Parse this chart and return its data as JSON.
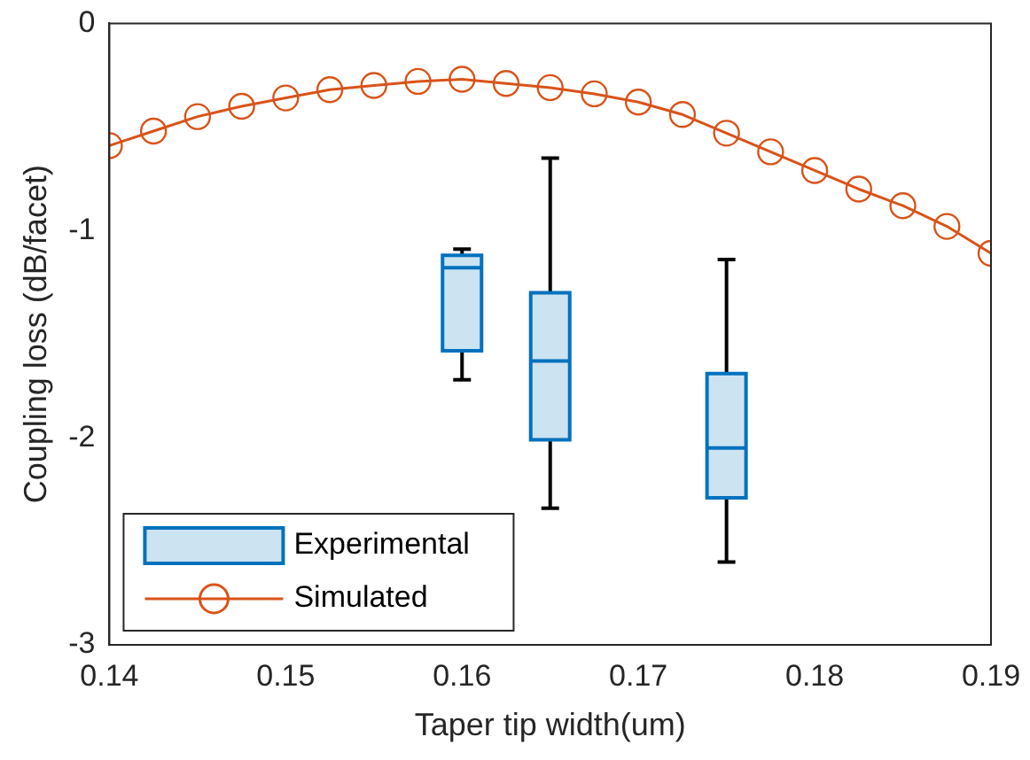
{
  "chart_data": {
    "type": "line",
    "xlabel": "Taper tip width(um)",
    "ylabel": "Coupling loss (dB/facet)",
    "xlim": [
      0.14,
      0.19
    ],
    "xticks": [
      0.14,
      0.15,
      0.16,
      0.17,
      0.18,
      0.19
    ],
    "ylim": [
      -3,
      0
    ],
    "yticks": [
      0,
      -1,
      -2,
      -3
    ],
    "grid": false,
    "legend": "bottom left",
    "series": [
      {
        "name": "Experimental",
        "type": "box",
        "color": "#0072bd",
        "x": [
          0.16,
          0.165,
          0.175
        ],
        "boxes": [
          {
            "low": -1.72,
            "q1": -1.58,
            "median": -1.18,
            "q3": -1.12,
            "high": -1.09
          },
          {
            "low": -2.34,
            "q1": -2.01,
            "median": -1.63,
            "q3": -1.3,
            "high": -0.65
          },
          {
            "low": -2.6,
            "q1": -2.29,
            "median": -2.05,
            "q3": -1.69,
            "high": -1.14
          }
        ]
      },
      {
        "name": "Simulated",
        "color": "#d95319",
        "marker": "circle",
        "line_style": "solid",
        "x": [
          0.14,
          0.1425,
          0.145,
          0.1475,
          0.15,
          0.1525,
          0.155,
          0.1575,
          0.16,
          0.1625,
          0.165,
          0.1675,
          0.17,
          0.1725,
          0.175,
          0.1775,
          0.18,
          0.1825,
          0.185,
          0.1875,
          0.19
        ],
        "values": [
          -0.59,
          -0.52,
          -0.45,
          -0.4,
          -0.36,
          -0.32,
          -0.3,
          -0.28,
          -0.27,
          -0.29,
          -0.31,
          -0.34,
          -0.38,
          -0.44,
          -0.53,
          -0.62,
          -0.71,
          -0.8,
          -0.88,
          -0.98,
          -1.11
        ]
      }
    ]
  }
}
